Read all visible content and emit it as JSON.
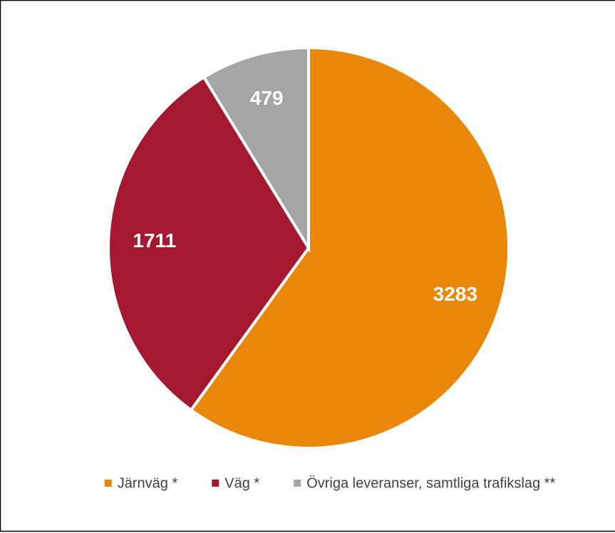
{
  "chart_data": {
    "type": "pie",
    "categories": [
      "Järnväg *",
      "Väg *",
      "Övriga leveranser, samtliga trafikslag **"
    ],
    "values": [
      3283,
      1711,
      479
    ],
    "colors": [
      "#e8870a",
      "#a41830",
      "#a5a5a5"
    ],
    "legend": "bottom"
  }
}
